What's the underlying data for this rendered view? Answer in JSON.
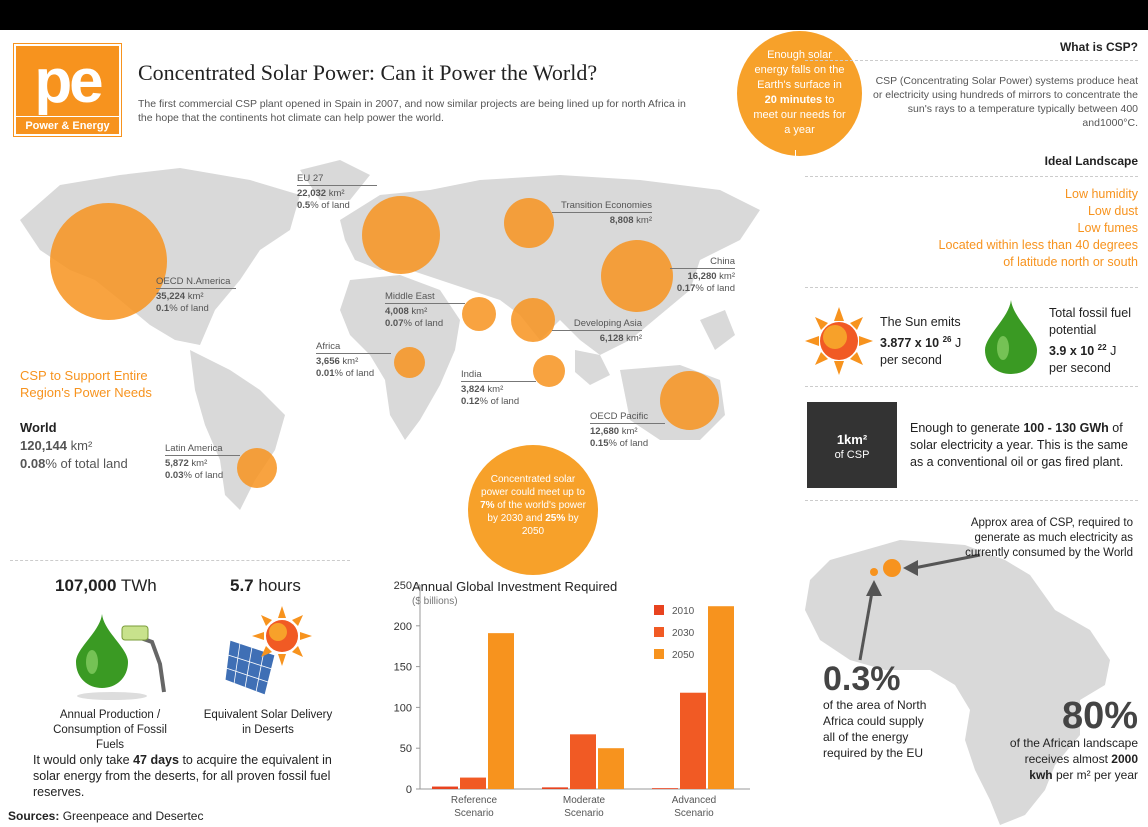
{
  "logo": {
    "text": "pe",
    "subtitle": "Power & Energy"
  },
  "header": {
    "title": "Concentrated Solar Power: Can it Power the World?",
    "subtitle": "The first commercial CSP plant opened in Spain in 2007, and now similar projects are being lined up for north Africa in the hope that the continents hot climate can help power the world."
  },
  "bubble_top": {
    "pre": "Enough solar energy falls on the Earth's surface in",
    "bold": "20 minutes",
    "post": "to meet our needs for a year"
  },
  "bubble_mid": {
    "text1": "Concentrated solar power could meet up to",
    "bold1": "7%",
    "text2": "of the world's power by 2030 and",
    "bold2": "25%",
    "text3": "by 2050"
  },
  "regions": [
    {
      "name": "OECD N.America",
      "area": "35,224",
      "unit": "km²",
      "pct": "0.1",
      "pct_suffix": "% of land"
    },
    {
      "name": "EU 27",
      "area": "22,032",
      "unit": "km²",
      "pct": "0.5",
      "pct_suffix": "% of land"
    },
    {
      "name": "Transition Economies",
      "area": "8,808",
      "unit": "km²",
      "pct": "",
      "pct_suffix": ""
    },
    {
      "name": "China",
      "area": "16,280",
      "unit": "km²",
      "pct": "0.17",
      "pct_suffix": "% of land"
    },
    {
      "name": "Middle East",
      "area": "4,008",
      "unit": "km²",
      "pct": "0.07",
      "pct_suffix": "% of land"
    },
    {
      "name": "Developing Asia",
      "area": "6,128",
      "unit": "km²",
      "pct": "",
      "pct_suffix": ""
    },
    {
      "name": "Africa",
      "area": "3,656",
      "unit": "km²",
      "pct": "0.01",
      "pct_suffix": "% of land"
    },
    {
      "name": "India",
      "area": "3,824",
      "unit": "km²",
      "pct": "0.12",
      "pct_suffix": "% of land"
    },
    {
      "name": "OECD Pacific",
      "area": "12,680",
      "unit": "km²",
      "pct": "0.15",
      "pct_suffix": "% of land"
    },
    {
      "name": "Latin America",
      "area": "5,872",
      "unit": "km²",
      "pct": "0.03",
      "pct_suffix": "% of land"
    }
  ],
  "csp_support": {
    "label": "CSP to Support Entire Region's Power Needs",
    "world_label": "World",
    "world_area": "120,144",
    "world_unit": "km²",
    "world_pct": "0.08",
    "world_pct_suffix": "% of total land"
  },
  "what_is_csp": {
    "heading": "What is CSP?",
    "text": "CSP (Concentrating Solar Power) systems produce heat or electricity using hundreds of mirrors to concentrate the sun's rays to a temperature typically between 400 and1000°C."
  },
  "ideal_landscape": {
    "heading": "Ideal Landscape",
    "items": [
      "Low humidity",
      "Low dust",
      "Low fumes",
      "Located within less than 40 degrees",
      "of latitude north or south"
    ]
  },
  "sun_emits": {
    "line1": "The Sun emits",
    "value": "3.877 x 10",
    "exp": "26",
    "unit": "J",
    "line3": "per second"
  },
  "fossil": {
    "line1": "Total fossil fuel",
    "line2": "potential",
    "value": "3.9 x 10",
    "exp": "22",
    "unit": "J",
    "line4": "per second"
  },
  "km_box": {
    "label1": "1km²",
    "label2": "of CSP",
    "pre": "Enough to generate",
    "bold": "100 - 130 GWh",
    "post": "of solar electricity a year. This is the same as a conventional oil or gas fired plant."
  },
  "africa": {
    "note": "Approx area of CSP, required to generate as much electricity as currently consumed by the World",
    "pct1": "0.3%",
    "pct1_text": "of the area of North Africa could supply all of the energy required by the EU",
    "pct2": "80%",
    "pct2_pre": "of the African landscape receives almost",
    "pct2_bold": "2000 kwh",
    "pct2_post": "per m² per year"
  },
  "bottom_left": {
    "twh_value": "107,000",
    "twh_unit": "TWh",
    "twh_caption": "Annual Production / Consumption of Fossil Fuels",
    "hours_value": "5.7",
    "hours_unit": "hours",
    "hours_caption": "Equivalent Solar Delivery in Deserts",
    "days_pre": "It would only take",
    "days_bold": "47 days",
    "days_post": "to acquire the equivalent in solar energy from the deserts, for all proven fossil fuel reserves."
  },
  "sources": {
    "label": "Sources:",
    "text": "Greenpeace and Desertec"
  },
  "colors": {
    "orange": "#f7931e",
    "red": "#f15a24",
    "light_orange": "#f7931e",
    "grey_map": "#d9d9d9"
  },
  "chart_data": {
    "type": "bar",
    "title": "Annual Global Investment Required",
    "subtitle": "($ billions)",
    "categories": [
      "Reference Scenario",
      "Moderate Scenario",
      "Advanced Scenario"
    ],
    "series": [
      {
        "name": "2010",
        "values": [
          3,
          2,
          1
        ],
        "color": "#e8431f"
      },
      {
        "name": "2030",
        "values": [
          14,
          67,
          118
        ],
        "color": "#f15a24"
      },
      {
        "name": "2050",
        "values": [
          191,
          50,
          224
        ],
        "color": "#f7931e"
      }
    ],
    "yticks": [
      "0",
      "50",
      "100",
      "150",
      "200",
      "250"
    ],
    "ylim": [
      0,
      250
    ],
    "legend": "top-right"
  }
}
